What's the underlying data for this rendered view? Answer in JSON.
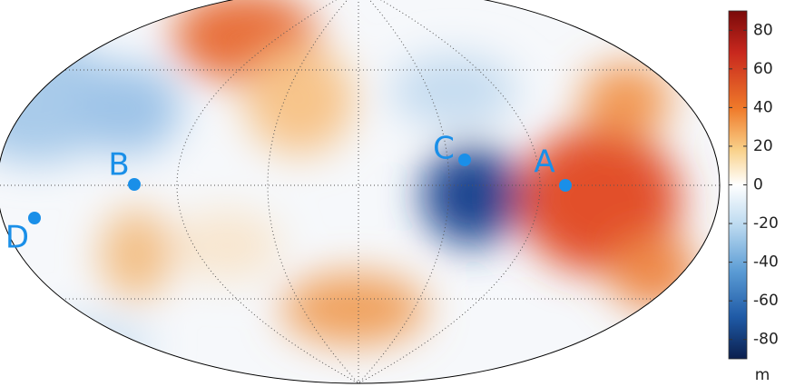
{
  "points": [
    {
      "label": "A"
    },
    {
      "label": "B"
    },
    {
      "label": "C"
    },
    {
      "label": "D"
    }
  ],
  "colorbar": {
    "ylim": [
      -90,
      90
    ],
    "yticks": [
      80,
      60,
      40,
      20,
      0,
      -20,
      -40,
      -60,
      -80
    ],
    "unit": "m"
  }
}
